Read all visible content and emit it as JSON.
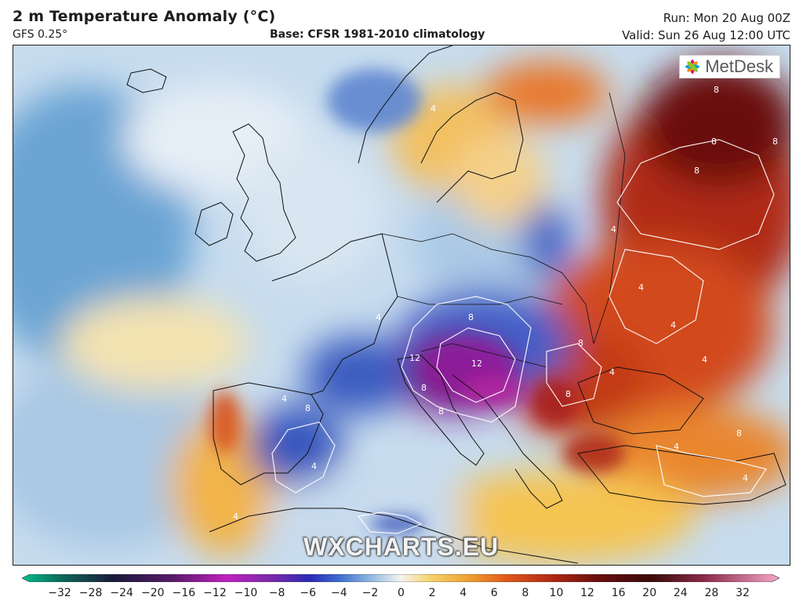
{
  "header": {
    "title": "2 m Temperature Anomaly (°C)",
    "model": "GFS 0.25°",
    "base": "Base: CFSR 1981-2010 climatology",
    "run": "Run: Mon 20 Aug 00Z",
    "valid": "Valid: Sun 26 Aug 12:00 UTC"
  },
  "map": {
    "region": "Europe",
    "variable": "2 m temperature anomaly",
    "contour_labels": [
      "4",
      "4",
      "8",
      "12",
      "12",
      "8",
      "8",
      "4",
      "4",
      "8",
      "8",
      "8",
      "8",
      "4",
      "4",
      "8",
      "8",
      "4",
      "4",
      "4",
      "4",
      "8",
      "8",
      "4",
      "4"
    ]
  },
  "branding": {
    "logo": "MetDesk",
    "watermark": "WXCHARTS.EU"
  },
  "legend": {
    "ticks": [
      "−32",
      "−28",
      "−24",
      "−20",
      "−16",
      "−12",
      "−10",
      "−8",
      "−6",
      "−4",
      "−2",
      "0",
      "2",
      "4",
      "6",
      "8",
      "10",
      "12",
      "16",
      "20",
      "24",
      "28",
      "32"
    ],
    "colors": {
      "cold_end": "#00c08a",
      "very_cold": "#7a1f8a",
      "cold": "#1f3fbf",
      "cool": "#9ec3e6",
      "neutral": "#f5f5f0",
      "warm": "#f5c451",
      "hot": "#e2571c",
      "very_hot": "#7a0a0a",
      "hot_end": "#f6a8c8"
    }
  }
}
